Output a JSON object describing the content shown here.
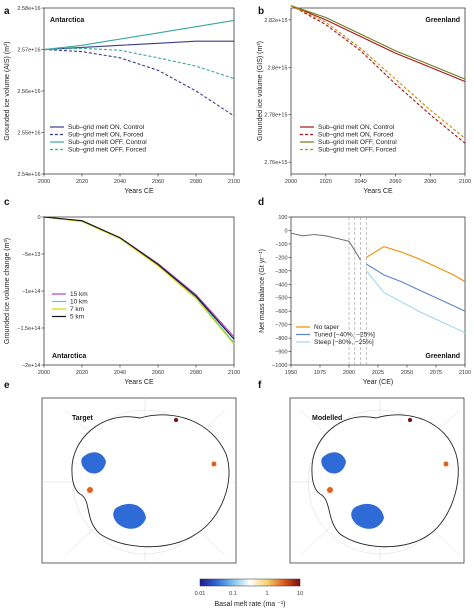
{
  "colors": {
    "on_control": "#3b3b8f",
    "on_forced": "#3b3b8f",
    "off_control": "#3aa89a",
    "off_forced": "#3aa89a",
    "g_on_control": "#a8141a",
    "g_on_forced": "#a8141a",
    "g_off_control": "#6e7b1e",
    "g_off_forced": "#c98a00",
    "km15": "#b03cd8",
    "km10": "#4fc9e6",
    "km7": "#d8d800",
    "km5": "#111111",
    "notaper": "#f08c00",
    "tuned": "#5a84c8",
    "steep": "#9fd8ec",
    "obs": "#777777"
  },
  "chart_data": [
    {
      "panel": "a",
      "type": "line",
      "title": "Antarctica",
      "xlabel": "Years CE",
      "ylabel": "Grounded ice volume (AIS) (m³)",
      "xlim": [
        2000,
        2100
      ],
      "ylim": [
        2.54e+16,
        2.58e+16
      ],
      "xticks": [
        "2000",
        "2020",
        "2040",
        "2060",
        "2080",
        "2100"
      ],
      "yticks": [
        "2.54e+16",
        "2.55e+16",
        "2.56e+16",
        "2.57e+16",
        "2.58e+16"
      ],
      "x": [
        2000,
        2020,
        2040,
        2060,
        2080,
        2100
      ],
      "series": [
        {
          "name": "Sub–grid melt ON, Control",
          "style": "solid",
          "values": [
            2.57e+16,
            2.5705e+16,
            2.571e+16,
            2.5715e+16,
            2.572e+16,
            2.572e+16
          ]
        },
        {
          "name": "Sub–grid melt ON, Forced",
          "style": "dashed",
          "values": [
            2.57e+16,
            2.5695e+16,
            2.568e+16,
            2.565e+16,
            2.56e+16,
            2.554e+16
          ]
        },
        {
          "name": "Sub–grid melt OFF, Control",
          "style": "solid",
          "values": [
            2.57e+16,
            2.571e+16,
            2.5725e+16,
            2.574e+16,
            2.5755e+16,
            2.577e+16
          ]
        },
        {
          "name": "Sub–grid melt OFF, Forced",
          "style": "dashed",
          "values": [
            2.57e+16,
            2.5703e+16,
            2.5698e+16,
            2.568e+16,
            2.566e+16,
            2.563e+16
          ]
        }
      ]
    },
    {
      "panel": "b",
      "type": "line",
      "title": "Greenland",
      "xlabel": "Years CE",
      "ylabel": "Grounded ice volume (GIS) (m³)",
      "xlim": [
        2000,
        2100
      ],
      "ylim": [
        2755000000000000.0,
        2825000000000000.0
      ],
      "xticks": [
        "2000",
        "2020",
        "2040",
        "2060",
        "2080",
        "2100"
      ],
      "yticks": [
        "2.76e+15",
        "2.78e+15",
        "2.8e+15",
        "2.82e+15"
      ],
      "x": [
        2000,
        2020,
        2040,
        2060,
        2080,
        2100
      ],
      "series": [
        {
          "name": "Sub–grid melt ON, Control",
          "style": "solid",
          "values": [
            2826000000000000.0,
            2820000000000000.0,
            2813000000000000.0,
            2806000000000000.0,
            2800000000000000.0,
            2794000000000000.0
          ]
        },
        {
          "name": "Sub–grid melt ON, Forced",
          "style": "dashed",
          "values": [
            2826000000000000.0,
            2818000000000000.0,
            2807000000000000.0,
            2793000000000000.0,
            2780000000000000.0,
            2768000000000000.0
          ]
        },
        {
          "name": "Sub–grid melt OFF, Control",
          "style": "solid",
          "values": [
            2826000000000000.0,
            2821000000000000.0,
            2814000000000000.0,
            2807000000000000.0,
            2801000000000000.0,
            2795000000000000.0
          ]
        },
        {
          "name": "Sub–grid melt OFF, Forced",
          "style": "dashed",
          "values": [
            2826000000000000.0,
            2819000000000000.0,
            2808000000000000.0,
            2795000000000000.0,
            2782000000000000.0,
            2770000000000000.0
          ]
        }
      ]
    },
    {
      "panel": "c",
      "type": "line",
      "title": "Antarctica",
      "xlabel": "Years CE",
      "ylabel": "Grounded ice volume change (m³)",
      "xlim": [
        2000,
        2100
      ],
      "ylim": [
        -200000000000000.0,
        0
      ],
      "xticks": [
        "2000",
        "2020",
        "2040",
        "2060",
        "2080",
        "2100"
      ],
      "yticks": [
        "0",
        "−5e+13",
        "−1e+14",
        "−1.5e+14",
        "−2e+14"
      ],
      "x": [
        2000,
        2020,
        2040,
        2060,
        2080,
        2100
      ],
      "series": [
        {
          "name": "15 km",
          "values": [
            0,
            -6000000000000.0,
            -28000000000000.0,
            -63000000000000.0,
            -105000000000000.0,
            -162000000000000.0
          ]
        },
        {
          "name": "10 km",
          "values": [
            0,
            -6000000000000.0,
            -29000000000000.0,
            -65000000000000.0,
            -108000000000000.0,
            -170000000000000.0
          ]
        },
        {
          "name": "7 km",
          "values": [
            0,
            -6000000000000.0,
            -29000000000000.0,
            -66000000000000.0,
            -110000000000000.0,
            -172000000000000.0
          ]
        },
        {
          "name": "5 km",
          "values": [
            0,
            -5000000000000.0,
            -28000000000000.0,
            -64000000000000.0,
            -107000000000000.0,
            -165000000000000.0
          ]
        }
      ]
    },
    {
      "panel": "d",
      "type": "line",
      "title": "Greenland",
      "xlabel": "Year (CE)",
      "ylabel": "Net mass balance (Gt yr⁻¹)",
      "xlim": [
        1950,
        2100
      ],
      "ylim": [
        -1000,
        100
      ],
      "xticks": [
        "1950",
        "1975",
        "2000",
        "2025",
        "2050",
        "2075",
        "2100"
      ],
      "yticks": [
        "100",
        "0",
        "−100",
        "−200",
        "−300",
        "−400",
        "−500",
        "−600",
        "−700",
        "−800",
        "−900",
        "−1000"
      ],
      "vlines": [
        2000,
        2005,
        2010,
        2015
      ],
      "series": [
        {
          "name": "observed",
          "x": [
            1950,
            1960,
            1970,
            1980,
            1990,
            2000,
            2005,
            2010
          ],
          "values": [
            -20,
            -40,
            -30,
            -40,
            -60,
            -80,
            -150,
            -220
          ]
        },
        {
          "name": "No taper",
          "x": [
            2015,
            2030,
            2045,
            2060,
            2075,
            2090,
            2100
          ],
          "values": [
            -200,
            -120,
            -160,
            -210,
            -270,
            -330,
            -380
          ]
        },
        {
          "name": "Tuned [−40%, −25%]",
          "x": [
            2015,
            2030,
            2045,
            2060,
            2075,
            2090,
            2100
          ],
          "values": [
            -250,
            -330,
            -380,
            -440,
            -500,
            -560,
            -600
          ]
        },
        {
          "name": "Steep [−80%, −25%]",
          "x": [
            2015,
            2030,
            2045,
            2060,
            2075,
            2090,
            2100
          ],
          "values": [
            -300,
            -460,
            -530,
            -600,
            -660,
            -720,
            -760
          ]
        }
      ]
    },
    {
      "panel": "e",
      "type": "heatmap",
      "title": "Target",
      "colorbar": {
        "label": "Basal melt rate (ma ⁻¹)",
        "ticks": [
          "0.01",
          "0.1",
          "1",
          "10"
        ]
      }
    },
    {
      "panel": "f",
      "type": "heatmap",
      "title": "Modelled",
      "colorbar": {
        "label": "Basal melt rate (ma ⁻¹)",
        "ticks": [
          "0.01",
          "0.1",
          "1",
          "10"
        ]
      }
    }
  ]
}
